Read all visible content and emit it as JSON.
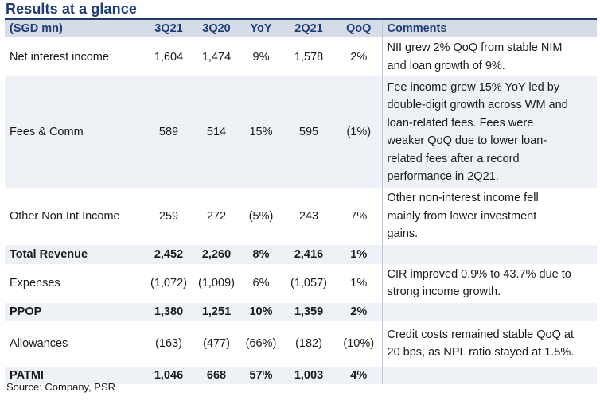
{
  "title": "Results at a glance",
  "source": "Source: Company, PSR",
  "colors": {
    "title": "#1f3b73",
    "header_bg": "#d6dde9",
    "shade_bg": "#eef1f6"
  },
  "table": {
    "headers": [
      "(SGD mn)",
      "3Q21",
      "3Q20",
      "YoY",
      "2Q21",
      "QoQ",
      "Comments"
    ],
    "rows": [
      {
        "label": "Net interest income",
        "q3_21": "1,604",
        "q3_20": "1,474",
        "yoy": "9%",
        "q2_21": "1,578",
        "qoq": "2%",
        "comment": [
          "NII grew 2% QoQ from stable NIM",
          "and loan growth of 9%."
        ]
      },
      {
        "label": "Fees & Comm",
        "q3_21": "589",
        "q3_20": "514",
        "yoy": "15%",
        "q2_21": "595",
        "qoq": "(1%)",
        "comment": [
          "Fee income grew 15% YoY led by",
          "double-digit growth across WM and",
          "loan-related fees. Fees were",
          "weaker QoQ due to lower loan-",
          "related fees after a record",
          "performance in 2Q21."
        ]
      },
      {
        "label": "Other Non Int Income",
        "q3_21": "259",
        "q3_20": "272",
        "yoy": "(5%)",
        "q2_21": "243",
        "qoq": "7%",
        "comment": [
          "Other non-interest income fell",
          "mainly from lower investment",
          "gains."
        ]
      },
      {
        "label": "Total Revenue",
        "q3_21": "2,452",
        "q3_20": "2,260",
        "yoy": "8%",
        "q2_21": "2,416",
        "qoq": "1%",
        "comment": []
      },
      {
        "label": "Expenses",
        "q3_21": "(1,072)",
        "q3_20": "(1,009)",
        "yoy": "6%",
        "q2_21": "(1,057)",
        "qoq": "1%",
        "comment": [
          "CIR improved 0.9% to 43.7% due to",
          "strong income growth."
        ]
      },
      {
        "label": "PPOP",
        "q3_21": "1,380",
        "q3_20": "1,251",
        "yoy": "10%",
        "q2_21": "1,359",
        "qoq": "2%",
        "comment": []
      },
      {
        "label": "Allowances",
        "q3_21": "(163)",
        "q3_20": "(477)",
        "yoy": "(66%)",
        "q2_21": "(182)",
        "qoq": "(10%)",
        "comment": [
          "Credit costs remained stable QoQ at",
          "20 bps, as NPL ratio stayed at 1.5%."
        ]
      },
      {
        "label": "PATMI",
        "q3_21": "1,046",
        "q3_20": "668",
        "yoy": "57%",
        "q2_21": "1,003",
        "qoq": "4%",
        "comment": []
      }
    ]
  }
}
